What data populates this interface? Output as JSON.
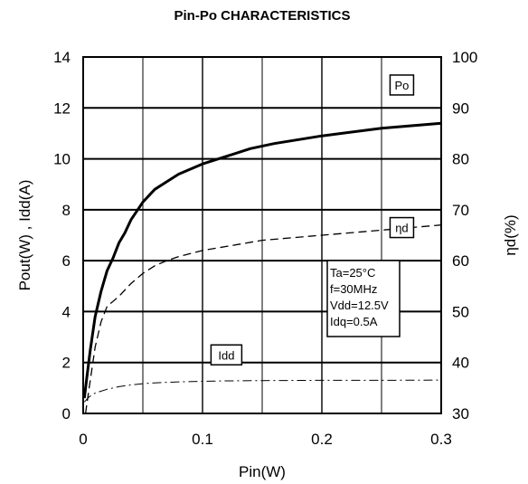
{
  "chart_data": {
    "type": "line",
    "title": "Pin-Po CHARACTERISTICS",
    "xlabel": "Pin(W)",
    "ylabel": "Pout(W) , Idd(A)",
    "y2label": "ηd(%)",
    "xlim": [
      0,
      0.3
    ],
    "ylim": [
      0,
      14
    ],
    "y2lim": [
      30,
      100
    ],
    "x_ticks": [
      "0",
      "0.1",
      "0.2",
      "0.3"
    ],
    "y_ticks": [
      "0",
      "2",
      "4",
      "6",
      "8",
      "10",
      "12",
      "14"
    ],
    "y2_ticks": [
      "30",
      "40",
      "50",
      "60",
      "70",
      "80",
      "90",
      "100"
    ],
    "grid": true,
    "series": [
      {
        "name": "Po",
        "axis": "left",
        "style": "solid-thick",
        "x": [
          0.001,
          0.003,
          0.006,
          0.01,
          0.015,
          0.02,
          0.025,
          0.03,
          0.035,
          0.04,
          0.05,
          0.06,
          0.07,
          0.08,
          0.1,
          0.12,
          0.14,
          0.16,
          0.2,
          0.25,
          0.3
        ],
        "y": [
          0.6,
          1.4,
          2.5,
          3.8,
          4.8,
          5.6,
          6.1,
          6.7,
          7.1,
          7.6,
          8.3,
          8.8,
          9.1,
          9.4,
          9.8,
          10.1,
          10.4,
          10.6,
          10.9,
          11.2,
          11.4
        ]
      },
      {
        "name": "ηd",
        "axis": "right",
        "style": "dashed",
        "x": [
          0.002,
          0.005,
          0.01,
          0.015,
          0.02,
          0.03,
          0.04,
          0.05,
          0.06,
          0.07,
          0.08,
          0.1,
          0.12,
          0.15,
          0.2,
          0.25,
          0.3
        ],
        "y": [
          30,
          35,
          43,
          48,
          51,
          53,
          55.5,
          57.5,
          59,
          60,
          60.8,
          62,
          62.8,
          64,
          65,
          66,
          67
        ]
      },
      {
        "name": "Idd",
        "axis": "left",
        "style": "dash-dot",
        "x": [
          0.001,
          0.005,
          0.01,
          0.02,
          0.03,
          0.04,
          0.05,
          0.06,
          0.08,
          0.1,
          0.12,
          0.15,
          0.2,
          0.25,
          0.3
        ],
        "y": [
          0.45,
          0.65,
          0.8,
          0.95,
          1.05,
          1.12,
          1.17,
          1.2,
          1.24,
          1.26,
          1.28,
          1.29,
          1.3,
          1.3,
          1.31
        ]
      }
    ],
    "series_labels": [
      {
        "text": "Po",
        "x": 0.267,
        "y": 12.9
      },
      {
        "text": "ηd",
        "x": 0.267,
        "y": 7.3
      },
      {
        "text": "Idd",
        "x": 0.12,
        "y": 2.3
      }
    ],
    "conditions": [
      "Ta=25°C",
      "f=30MHz",
      "Vdd=12.5V",
      "Idq=0.5A"
    ]
  }
}
